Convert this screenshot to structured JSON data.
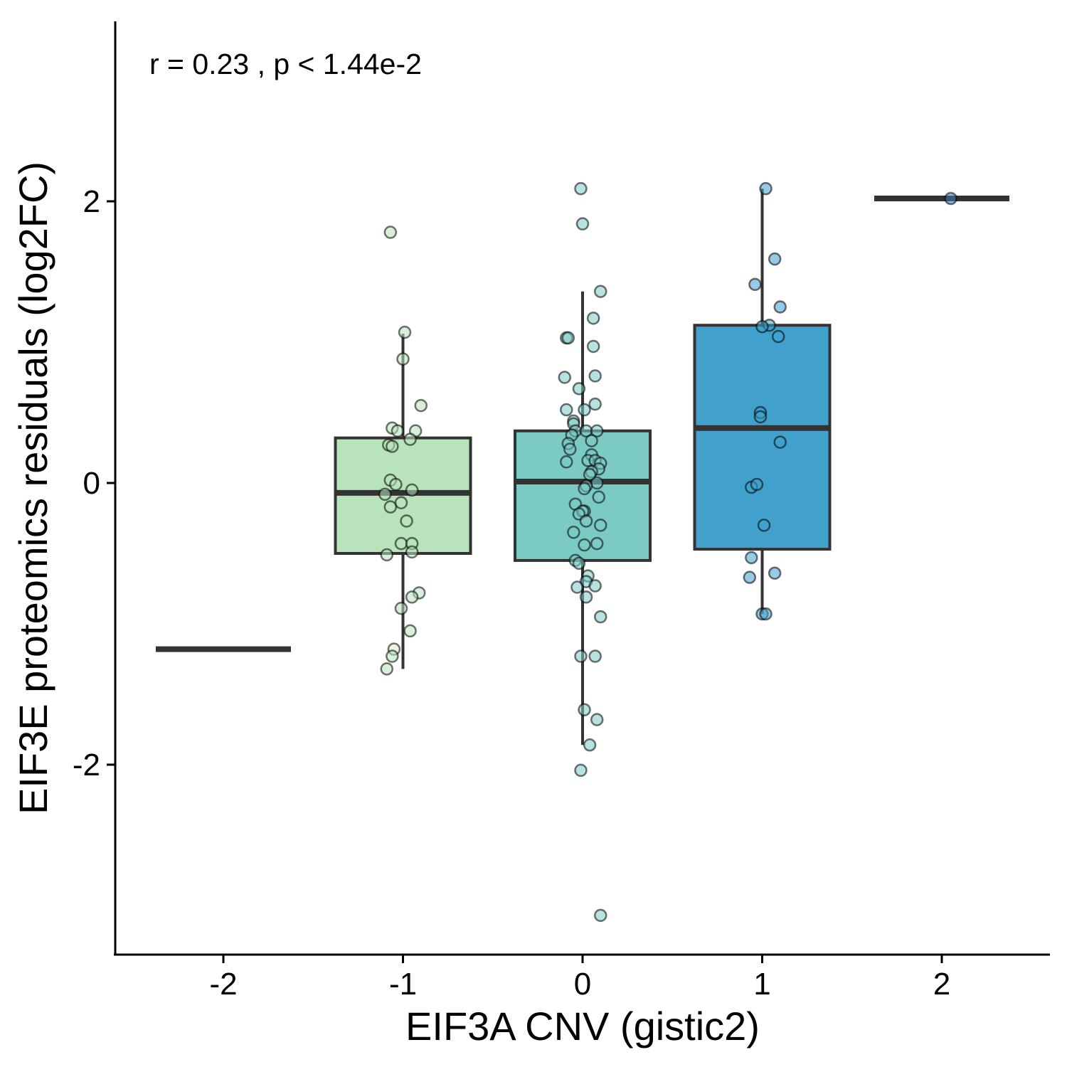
{
  "chart_data": {
    "type": "box",
    "annotation": "r = 0.23 ,  p <  1.44e-2",
    "xlabel": "EIF3A CNV (gistic2)",
    "ylabel": "EIF3E proteomics residuals (log2FC)",
    "x_ticks": [
      "-2",
      "-1",
      "0",
      "1",
      "2"
    ],
    "y_ticks": [
      -2,
      0,
      2
    ],
    "y_tick_labels": [
      "-2",
      "0",
      "2"
    ],
    "ylim": [
      -3.35,
      3.3
    ],
    "grid": false,
    "legend": "none",
    "groups": [
      {
        "category": "-2",
        "color": "#d3ecc8",
        "whisker_low": -1.18,
        "q1": -1.18,
        "median": -1.18,
        "q3": -1.18,
        "whisker_high": -1.18,
        "points": [
          [
            -1.05,
            -1.18
          ]
        ]
      },
      {
        "category": "-1",
        "color": "#b8e3bb",
        "whisker_low": -1.32,
        "q1": -0.5,
        "median": -0.07,
        "q3": 0.32,
        "whisker_high": 1.06,
        "points": [
          [
            -1.07,
            1.78
          ],
          [
            -0.99,
            1.07
          ],
          [
            -1.0,
            0.88
          ],
          [
            -0.9,
            0.55
          ],
          [
            -1.06,
            0.39
          ],
          [
            -1.03,
            0.37
          ],
          [
            -0.93,
            0.37
          ],
          [
            -0.96,
            0.31
          ],
          [
            -1.08,
            0.27
          ],
          [
            -1.06,
            0.26
          ],
          [
            -1.07,
            0.02
          ],
          [
            -1.04,
            -0.01
          ],
          [
            -0.95,
            -0.05
          ],
          [
            -1.1,
            -0.08
          ],
          [
            -1.01,
            -0.14
          ],
          [
            -1.07,
            -0.17
          ],
          [
            -0.98,
            -0.27
          ],
          [
            -1.01,
            -0.43
          ],
          [
            -0.95,
            -0.43
          ],
          [
            -0.95,
            -0.49
          ],
          [
            -1.09,
            -0.51
          ],
          [
            -0.91,
            -0.78
          ],
          [
            -0.95,
            -0.81
          ],
          [
            -1.01,
            -0.89
          ],
          [
            -0.96,
            -1.05
          ],
          [
            -1.06,
            -1.23
          ],
          [
            -1.09,
            -1.32
          ]
        ]
      },
      {
        "category": "0",
        "color": "#7bcbc4",
        "whisker_low": -1.86,
        "q1": -0.55,
        "median": 0.01,
        "q3": 0.37,
        "whisker_high": 1.36,
        "points": [
          [
            -0.01,
            2.09
          ],
          [
            0.0,
            1.84
          ],
          [
            0.1,
            1.36
          ],
          [
            0.06,
            1.17
          ],
          [
            -0.09,
            1.03
          ],
          [
            -0.08,
            1.03
          ],
          [
            0.06,
            0.97
          ],
          [
            0.07,
            0.76
          ],
          [
            -0.1,
            0.75
          ],
          [
            -0.02,
            0.67
          ],
          [
            0.07,
            0.56
          ],
          [
            0.01,
            0.52
          ],
          [
            -0.09,
            0.52
          ],
          [
            -0.05,
            0.44
          ],
          [
            -0.05,
            0.42
          ],
          [
            -0.04,
            0.37
          ],
          [
            0.02,
            0.37
          ],
          [
            0.08,
            0.37
          ],
          [
            -0.06,
            0.34
          ],
          [
            -0.08,
            0.28
          ],
          [
            0.05,
            0.3
          ],
          [
            -0.07,
            0.24
          ],
          [
            0.05,
            0.2
          ],
          [
            0.03,
            0.16
          ],
          [
            0.07,
            0.16
          ],
          [
            0.1,
            0.14
          ],
          [
            -0.09,
            0.15
          ],
          [
            0.09,
            0.1
          ],
          [
            0.05,
            0.08
          ],
          [
            0.04,
            0.06
          ],
          [
            0.08,
            0.0
          ],
          [
            0.02,
            -0.02
          ],
          [
            0.01,
            -0.04
          ],
          [
            0.09,
            -0.1
          ],
          [
            -0.04,
            -0.15
          ],
          [
            0.01,
            -0.2
          ],
          [
            0.0,
            -0.2
          ],
          [
            -0.02,
            -0.22
          ],
          [
            0.02,
            -0.27
          ],
          [
            0.1,
            -0.3
          ],
          [
            -0.05,
            -0.35
          ],
          [
            0.01,
            -0.44
          ],
          [
            0.08,
            -0.43
          ],
          [
            -0.04,
            -0.55
          ],
          [
            -0.02,
            -0.57
          ],
          [
            0.03,
            -0.66
          ],
          [
            0.02,
            -0.7
          ],
          [
            0.07,
            -0.73
          ],
          [
            -0.03,
            -0.74
          ],
          [
            0.02,
            -0.81
          ],
          [
            0.1,
            -0.95
          ],
          [
            -0.01,
            -1.23
          ],
          [
            0.07,
            -1.23
          ],
          [
            0.01,
            -1.61
          ],
          [
            0.08,
            -1.68
          ],
          [
            0.04,
            -1.86
          ],
          [
            -0.01,
            -2.04
          ],
          [
            0.1,
            -3.07
          ]
        ]
      },
      {
        "category": "1",
        "color": "#41a1cc",
        "whisker_low": -0.93,
        "q1": -0.47,
        "median": 0.39,
        "q3": 1.12,
        "whisker_high": 2.09,
        "points": [
          [
            1.02,
            2.09
          ],
          [
            1.07,
            1.59
          ],
          [
            0.96,
            1.41
          ],
          [
            1.1,
            1.25
          ],
          [
            1.04,
            1.12
          ],
          [
            1.0,
            1.11
          ],
          [
            1.09,
            1.04
          ],
          [
            0.99,
            0.5
          ],
          [
            0.99,
            0.47
          ],
          [
            1.1,
            0.29
          ],
          [
            0.94,
            -0.03
          ],
          [
            0.97,
            -0.01
          ],
          [
            1.01,
            -0.3
          ],
          [
            0.94,
            -0.53
          ],
          [
            1.07,
            -0.64
          ],
          [
            0.93,
            -0.67
          ],
          [
            1.0,
            -0.93
          ],
          [
            1.02,
            -0.93
          ]
        ]
      },
      {
        "category": "2",
        "color": "#3b7db5",
        "whisker_low": 2.02,
        "q1": 2.02,
        "median": 2.02,
        "q3": 2.02,
        "whisker_high": 2.02,
        "points": [
          [
            2.05,
            2.02
          ]
        ]
      }
    ]
  }
}
